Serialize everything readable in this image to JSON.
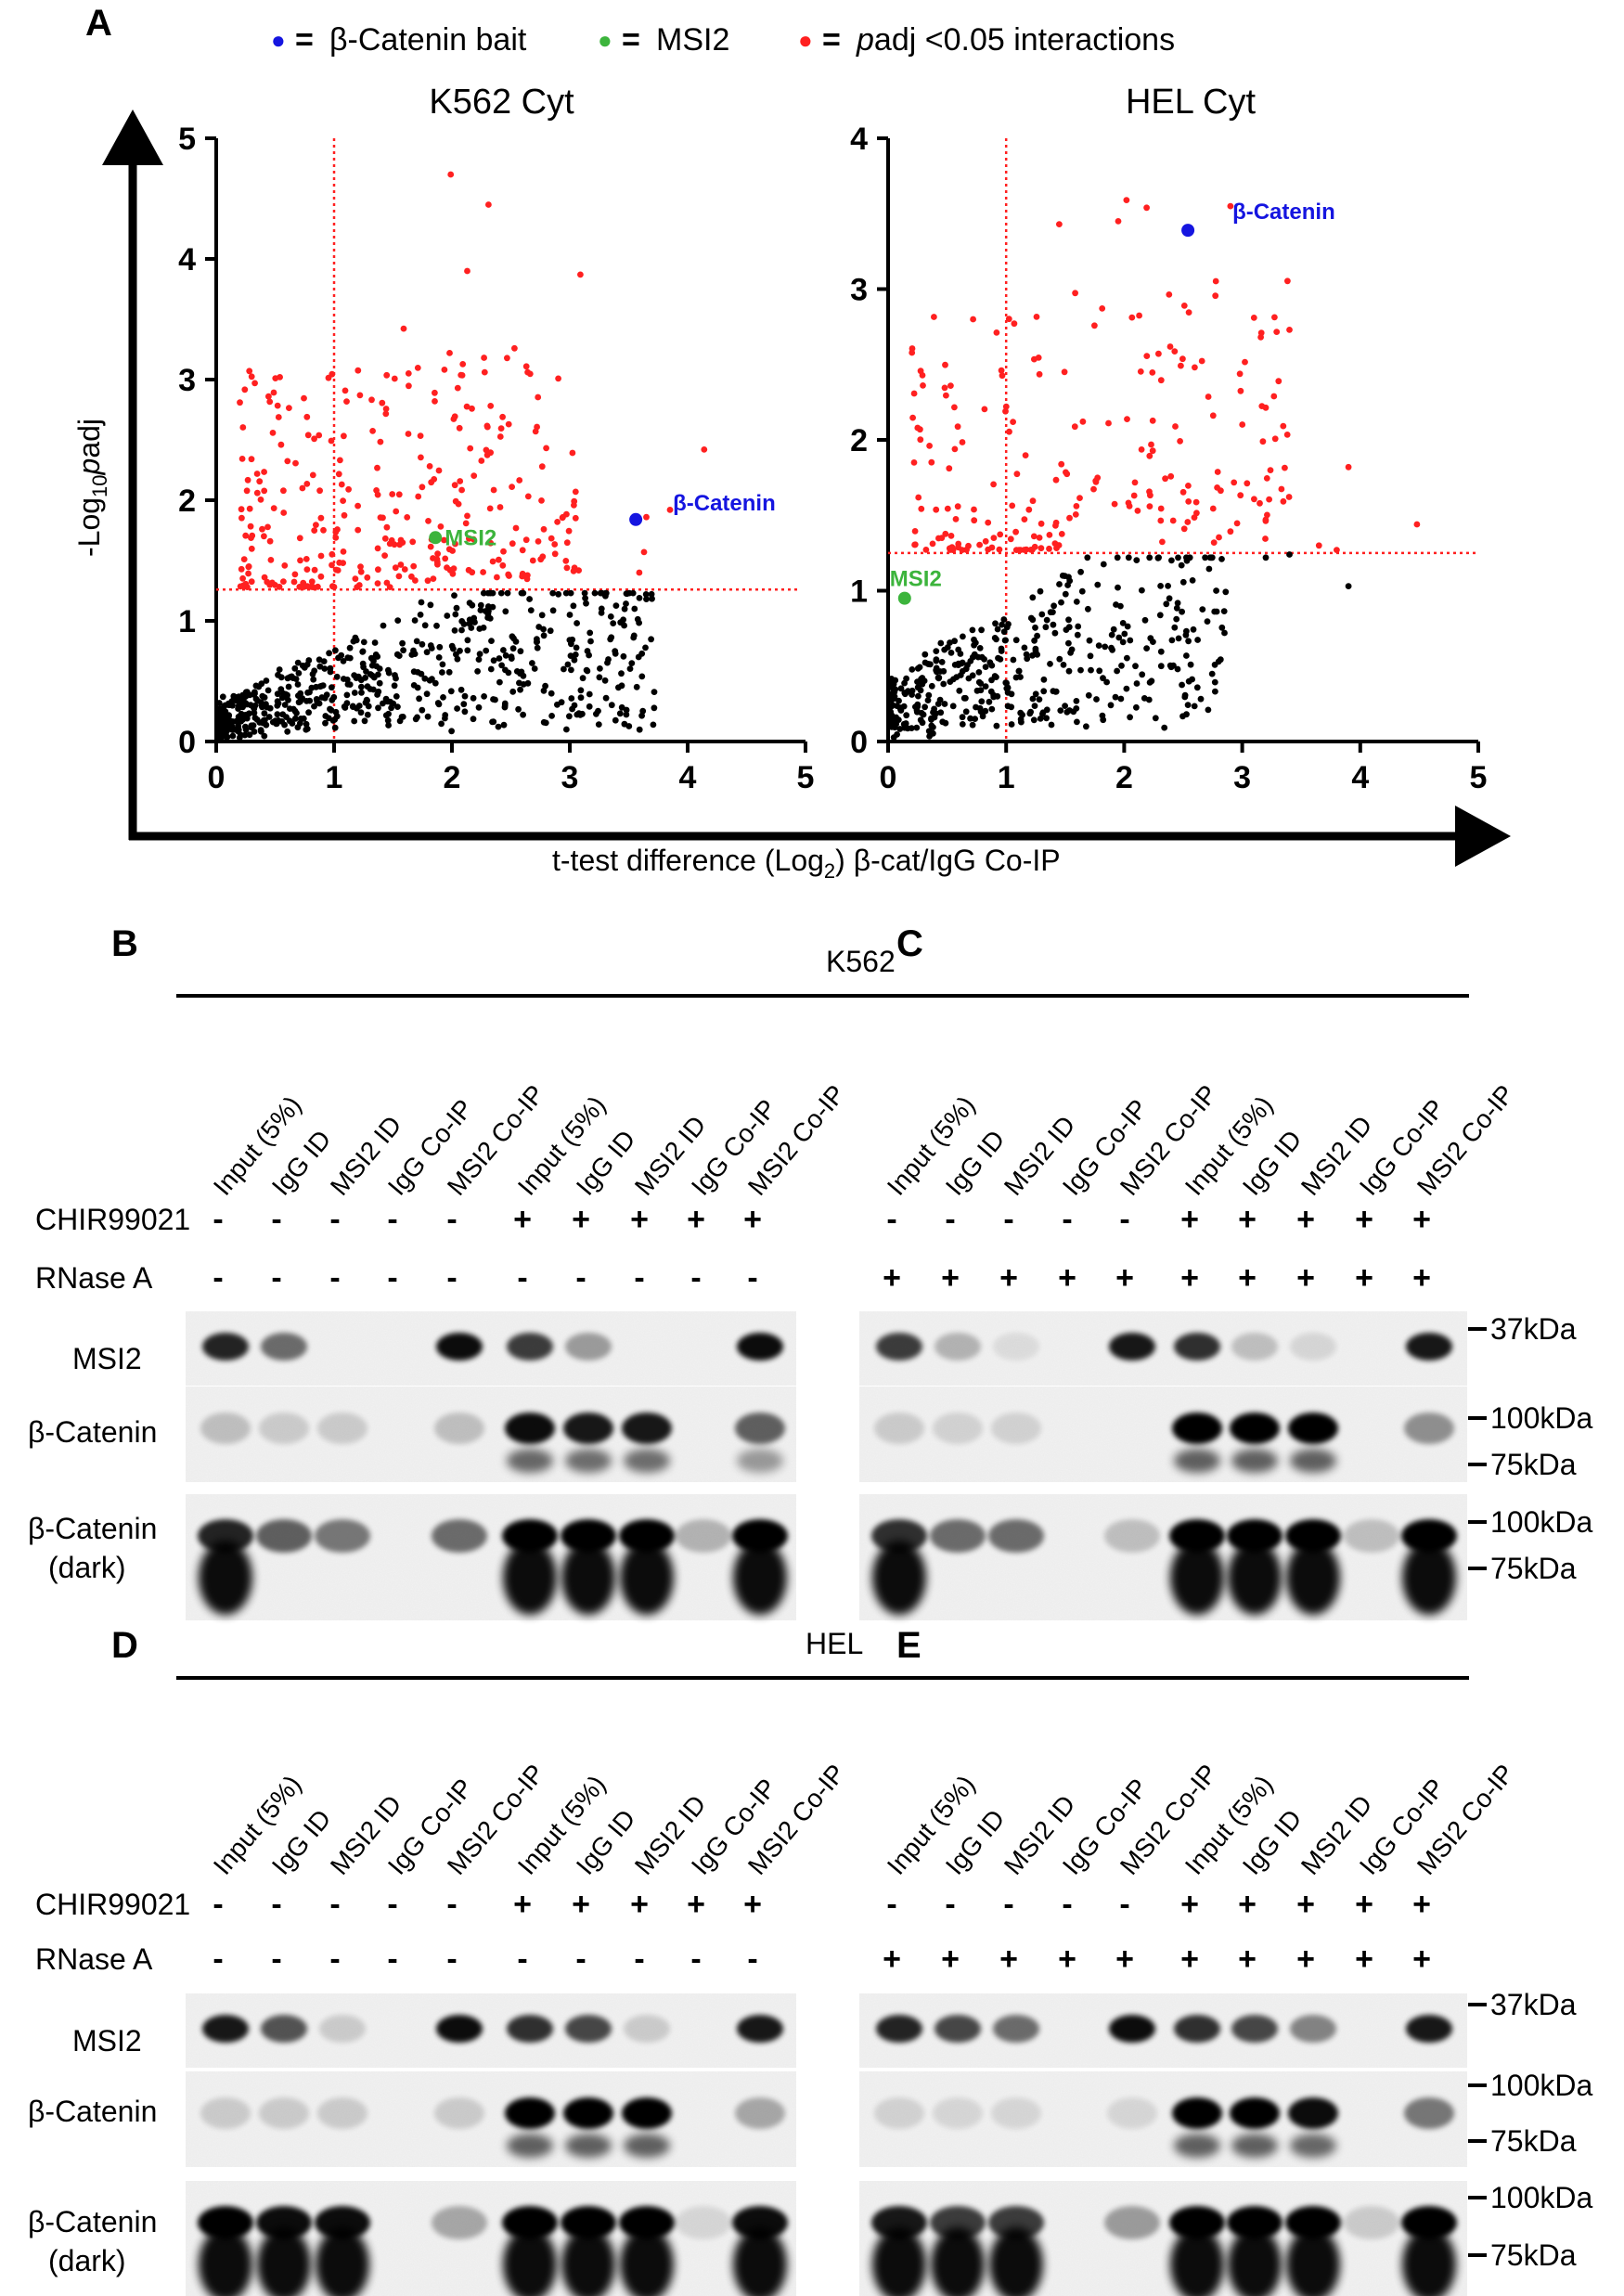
{
  "panel_labels": {
    "a": "A",
    "b": "B",
    "c": "C",
    "d": "D",
    "e": "E"
  },
  "legend": [
    {
      "symbol": "●",
      "eq": "=",
      "text": "β-Catenin bait",
      "color": "#1515e0"
    },
    {
      "symbol": "●",
      "eq": "=",
      "text": "MSI2",
      "color": "#3cb43c"
    },
    {
      "symbol": "●",
      "eq": "=",
      "text_italic": "p",
      "text": "adj <0.05 interactions",
      "color": "#ff2020"
    }
  ],
  "axes": {
    "ylabel_pre": "-Log",
    "ylabel_sub": "10",
    "ylabel_italic": "p",
    "ylabel_post": "adj",
    "xlabel_pre": "t-test difference (Log",
    "xlabel_sub": "2",
    "xlabel_post": ") β-cat/IgG Co-IP"
  },
  "chart_data": [
    {
      "type": "scatter",
      "title": "K562 Cyt",
      "xlim": [
        0,
        5
      ],
      "ylim": [
        0,
        5
      ],
      "xticks": [
        "0",
        "1",
        "2",
        "3",
        "4",
        "5"
      ],
      "yticks": [
        "0",
        "1",
        "2",
        "3",
        "4",
        "5"
      ],
      "threshold_x": 1,
      "threshold_y": 1.26,
      "bait": {
        "label": "β-Catenin",
        "x": 3.56,
        "y": 1.84,
        "color": "#1515e0"
      },
      "msi2": {
        "label": "MSI2",
        "x": 1.86,
        "y": 1.69,
        "color": "#3cb43c"
      },
      "significant_color": "#ff2020",
      "nonsignificant_color": "#000000",
      "n_significant": 290,
      "n_nonsignificant": 620,
      "significant_highlight_points": [
        [
          1.99,
          4.7
        ],
        [
          2.31,
          4.45
        ],
        [
          3.09,
          3.87
        ],
        [
          2.13,
          3.9
        ],
        [
          1.98,
          3.22
        ],
        [
          2.05,
          2.93
        ],
        [
          2.43,
          2.69
        ],
        [
          1.63,
          2.55
        ],
        [
          0.77,
          2.69
        ],
        [
          2.71,
          2.57
        ],
        [
          1.22,
          2.87
        ],
        [
          4.14,
          2.42
        ],
        [
          3.05,
          2.07
        ],
        [
          3.85,
          1.92
        ],
        [
          3.65,
          1.86
        ],
        [
          0.55,
          2.46
        ],
        [
          3.63,
          1.57
        ],
        [
          3.59,
          1.4
        ]
      ],
      "nonsignificant_highlight_points": [
        [
          3.05,
          0.72
        ],
        [
          3.15,
          0.75
        ],
        [
          2.35,
          0.35
        ],
        [
          2.45,
          0.3
        ],
        [
          2.68,
          0.65
        ],
        [
          3.0,
          1.05
        ],
        [
          3.55,
          1.1
        ],
        [
          3.65,
          1.18
        ]
      ]
    },
    {
      "type": "scatter",
      "title": "HEL Cyt",
      "xlim": [
        0,
        5
      ],
      "ylim": [
        0,
        4
      ],
      "xticks": [
        "0",
        "1",
        "2",
        "3",
        "4",
        "5"
      ],
      "yticks": [
        "0",
        "1",
        "2",
        "3",
        "4"
      ],
      "threshold_x": 1,
      "threshold_y": 1.25,
      "bait": {
        "label": "β-Catenin",
        "x": 2.54,
        "y": 3.39,
        "color": "#1515e0"
      },
      "msi2": {
        "label": "MSI2",
        "x": 0.14,
        "y": 0.95,
        "color": "#3cb43c"
      },
      "significant_color": "#ff2020",
      "nonsignificant_color": "#000000",
      "n_significant": 210,
      "n_nonsignificant": 420,
      "significant_highlight_points": [
        [
          2.02,
          3.59
        ],
        [
          1.95,
          3.45
        ],
        [
          2.19,
          3.54
        ],
        [
          1.45,
          3.43
        ],
        [
          2.9,
          3.55
        ],
        [
          3.1,
          2.81
        ],
        [
          3.4,
          2.73
        ],
        [
          0.72,
          2.8
        ],
        [
          2.51,
          2.89
        ],
        [
          4.48,
          1.44
        ],
        [
          3.9,
          1.82
        ],
        [
          3.8,
          1.27
        ],
        [
          3.65,
          1.3
        ],
        [
          0.25,
          2.08
        ],
        [
          0.22,
          1.85
        ]
      ],
      "nonsignificant_highlight_points": [
        [
          2.8,
          0.53
        ],
        [
          2.85,
          0.72
        ],
        [
          2.02,
          0.35
        ],
        [
          2.78,
          1.0
        ],
        [
          3.9,
          1.03
        ],
        [
          3.4,
          1.24
        ],
        [
          3.2,
          1.22
        ]
      ]
    }
  ],
  "blots": {
    "group_k562": "K562",
    "group_hel": "HEL",
    "lane_labels": [
      "Input (5%)",
      "IgG ID",
      "MSI2 ID",
      "IgG Co-IP",
      "MSI2 Co-IP",
      "Input (5%)",
      "IgG ID",
      "MSI2 ID",
      "IgG Co-IP",
      "MSI2 Co-IP"
    ],
    "treatments": {
      "chir_label": "CHIR99021",
      "rnase_label": "RNase A",
      "chir_values": [
        "-",
        "-",
        "-",
        "-",
        "-",
        "+",
        "+",
        "+",
        "+",
        "+"
      ],
      "rnase_minus": [
        "-",
        "-",
        "-",
        "-",
        "-",
        "-",
        "-",
        "-",
        "-",
        "-"
      ],
      "rnase_plus": [
        "+",
        "+",
        "+",
        "+",
        "+",
        "+",
        "+",
        "+",
        "+",
        "+"
      ]
    },
    "row_labels": {
      "msi2": "MSI2",
      "bcat": "β-Catenin",
      "bcat_dark_1": "β-Catenin",
      "bcat_dark_2": "(dark)"
    },
    "markers": {
      "m37": "37kDa",
      "m100": "100kDa",
      "m75": "75kDa"
    }
  }
}
